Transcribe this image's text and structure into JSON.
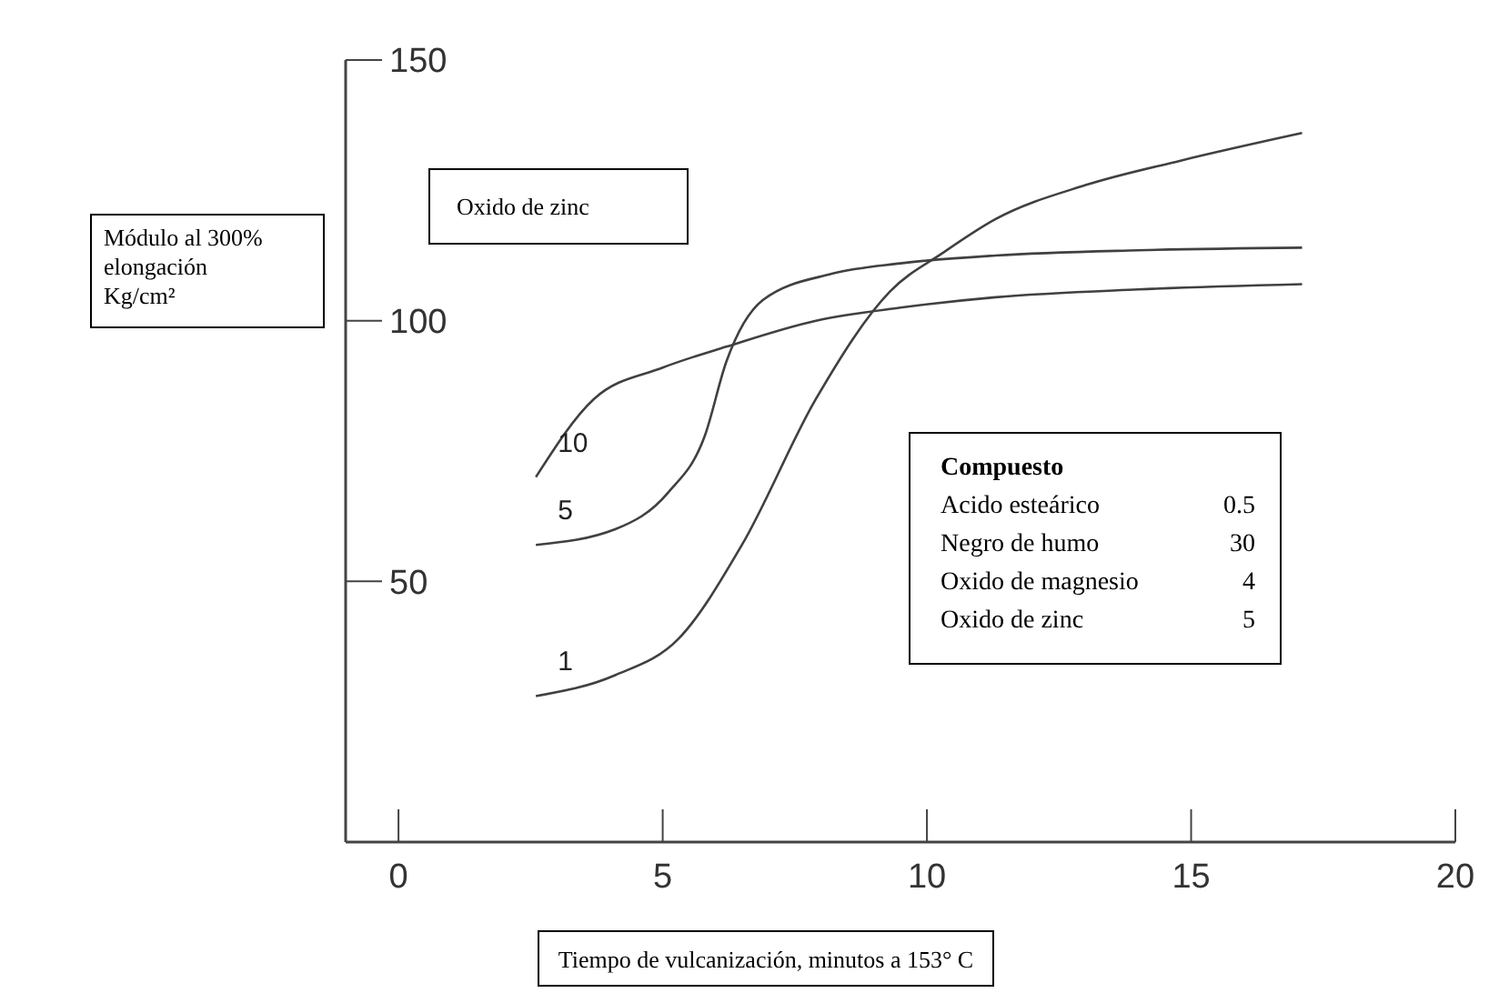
{
  "chart_data": {
    "type": "line",
    "xlabel": "Tiempo de vulcanización, minutos a 153° C",
    "ylabel": "Módulo al 300% elongación Kg/cm²",
    "legend_title": "Oxido de zinc",
    "xlim": [
      -1,
      20
    ],
    "xticks": [
      0,
      5,
      10,
      15,
      20
    ],
    "ylim": [
      0,
      150
    ],
    "yticks": [
      50,
      100,
      150
    ],
    "grid": false,
    "series": [
      {
        "name": "10",
        "color": "#404040",
        "x": [
          2.6,
          3.7,
          5,
          6.2,
          7.9,
          9.5,
          11.3,
          14,
          17.1
        ],
        "values": [
          70,
          85,
          91,
          95,
          100,
          102.5,
          104.5,
          106,
          107
        ]
      },
      {
        "name": "5",
        "color": "#404040",
        "x": [
          2.6,
          4.1,
          5.1,
          5.8,
          6.2,
          6.9,
          8.2,
          9.5,
          11.3,
          14,
          17.1
        ],
        "values": [
          57,
          60,
          67,
          78,
          92,
          104,
          109,
          111,
          112.5,
          113.5,
          114
        ]
      },
      {
        "name": "1",
        "color": "#404040",
        "x": [
          2.6,
          4.1,
          5.3,
          6.5,
          7.9,
          9.3,
          10.3,
          11.3,
          13,
          14.8,
          17.1
        ],
        "values": [
          28,
          32,
          39,
          57,
          85,
          105.6,
          113,
          119.5,
          126,
          130.7,
          136
        ]
      }
    ],
    "annotations": [
      "Compuesto",
      "Acido esteárico 0.5",
      "Negro de humo 30",
      "Oxido de magnesio 4",
      "Oxido de zinc 5"
    ]
  }
}
